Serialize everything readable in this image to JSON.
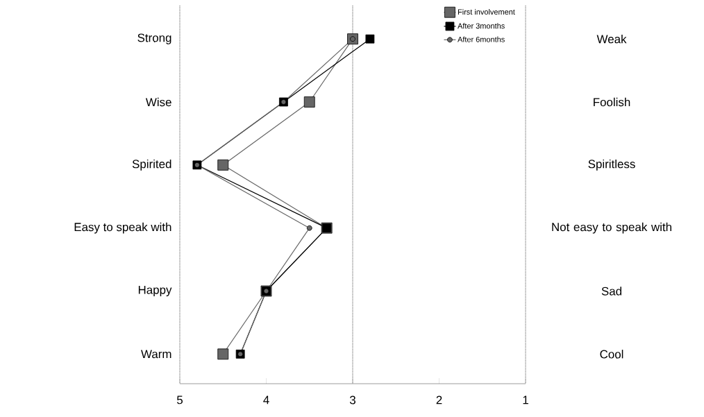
{
  "chart_data": {
    "type": "line",
    "orientation": "horizontal",
    "categories": [
      "Strong",
      "Wise",
      "Spirited",
      "Easy to speak with",
      "Happy",
      "Warm"
    ],
    "series": [
      {
        "name": "First involvement",
        "color": "#666666",
        "marker": "square",
        "values": [
          3.0,
          3.5,
          4.5,
          3.3,
          4.0,
          4.5
        ]
      },
      {
        "name": "After 3months",
        "color": "#000000",
        "marker": "square",
        "values": [
          2.8,
          3.8,
          4.8,
          3.3,
          4.0,
          4.3
        ]
      },
      {
        "name": "After 6months",
        "color": "#666666",
        "marker": "circle",
        "values": [
          3.0,
          3.8,
          4.8,
          3.5,
          4.0,
          4.3
        ]
      }
    ],
    "annotations": [
      "Weak",
      "Foolish",
      "Spiritless",
      "Not easy to speak with",
      "Sad",
      "Cool"
    ],
    "xlim": [
      5,
      1
    ],
    "xticks": [
      5,
      4,
      3,
      2,
      1
    ],
    "ref_lines": [
      {
        "axis": "x",
        "value": 3,
        "line_style": "dotted"
      }
    ],
    "legend": "top right",
    "line_style": "solid"
  }
}
